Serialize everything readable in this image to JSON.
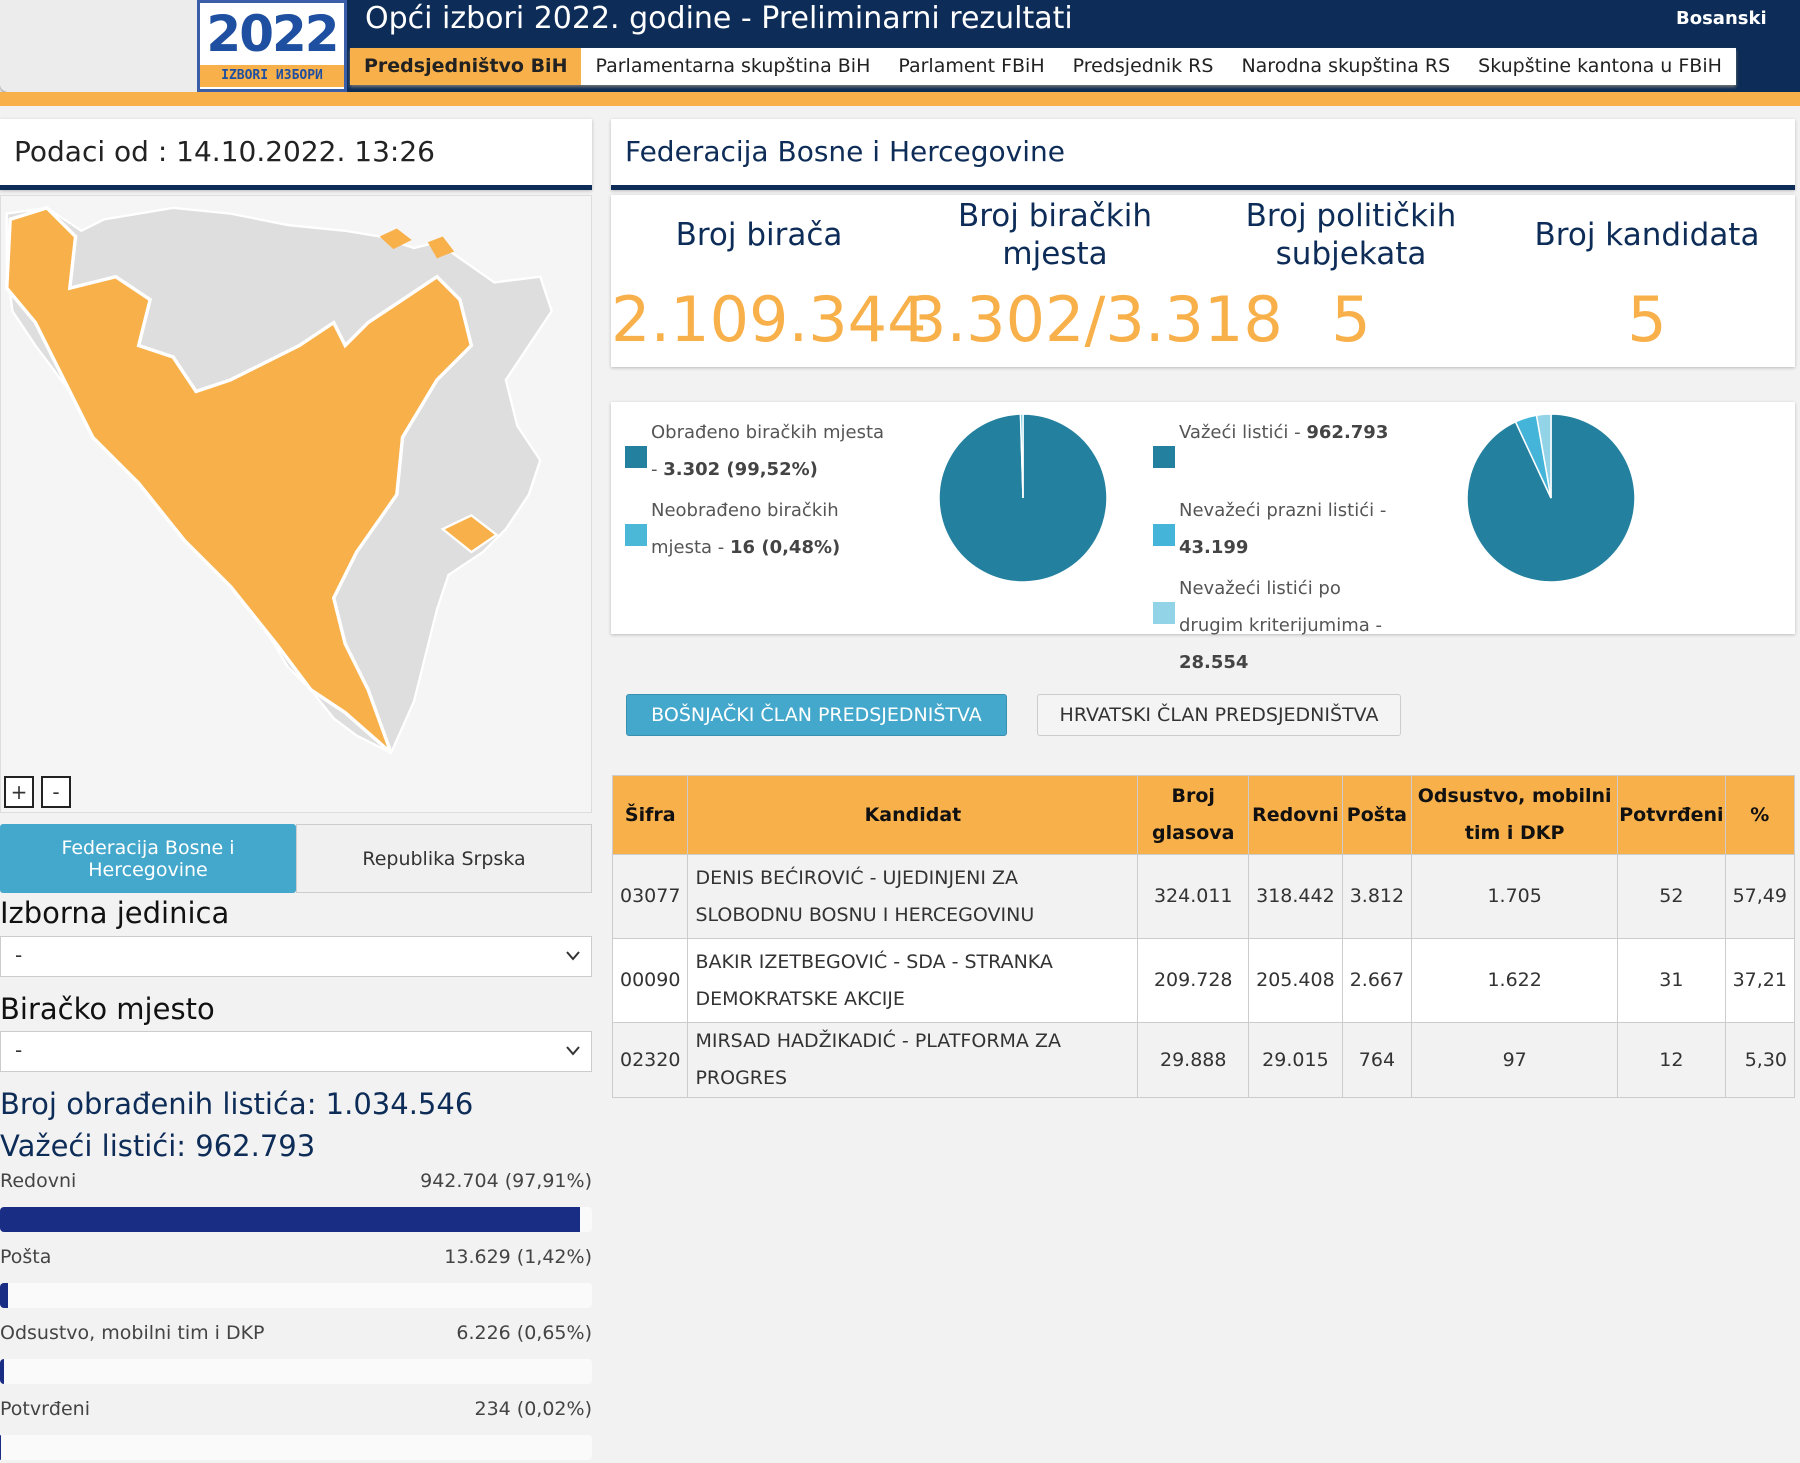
{
  "header": {
    "title": "Opći izbori 2022. godine - Preliminarni rezultati",
    "language": "Bosanski",
    "logo_year": "2022",
    "logo_text": "IZBORI ИЗБОРИ",
    "tabs": [
      "Predsjedništvo BiH",
      "Parlamentarna skupština BiH",
      "Parlament FBiH",
      "Predsjednik RS",
      "Narodna skupština RS",
      "Skupštine kantona u FBiH"
    ]
  },
  "left": {
    "data_as_of": "Podaci od : 14.10.2022. 13:26",
    "zoom_in": "+",
    "zoom_out": "-",
    "entity_tabs": [
      "Federacija Bosne i Hercegovine",
      "Republika Srpska"
    ],
    "unit_label": "Izborna jedinica",
    "unit_value": "-",
    "station_label": "Biračko mjesto",
    "station_value": "-",
    "processed": "Broj obrađenih listića: 1.034.546",
    "valid": "Važeći listići: 962.793",
    "breakdown": [
      {
        "label": "Redovni",
        "value_label": "942.704 (97,91%)",
        "percent": 97.91
      },
      {
        "label": "Pošta",
        "value_label": "13.629 (1,42%)",
        "percent": 1.42
      },
      {
        "label": "Odsustvo, mobilni tim i DKP",
        "value_label": "6.226 (0,65%)",
        "percent": 0.65
      },
      {
        "label": "Potvrđeni",
        "value_label": "234 (0,02%)",
        "percent": 0.02
      }
    ]
  },
  "right": {
    "title": "Federacija Bosne i Hercegovine",
    "stats": [
      {
        "label": "Broj birača",
        "value": "2.109.344"
      },
      {
        "label": "Broj biračkih mjesta",
        "value": "3.302/3.318"
      },
      {
        "label": "Broj političkih subjekata",
        "value": "5"
      },
      {
        "label": "Broj kandidata",
        "value": "5"
      }
    ],
    "pies": [
      {
        "slices": [
          {
            "name": "Obrađeno biračkih mjesta -",
            "value": 3302,
            "value_label": "3.302 (99,52%)",
            "color": "#23809e"
          },
          {
            "name": "Neobrađeno biračkih mjesta -",
            "value": 16,
            "value_label": "16 (0,48%)",
            "color": "#4cb8d8"
          }
        ]
      },
      {
        "slices": [
          {
            "name": "Važeći listići -",
            "value": 962793,
            "value_label": "962.793",
            "color": "#23809e"
          },
          {
            "name": "Nevažeći prazni listići -",
            "value": 43199,
            "value_label": "43.199",
            "color": "#44b4d8"
          },
          {
            "name": "Nevažeći listići po drugim kriterijumima -",
            "value": 28554,
            "value_label": "28.554",
            "color": "#92d3e8"
          }
        ]
      }
    ],
    "buttons": [
      "BOŠNJAČKI ČLAN PREDSJEDNIŠTVA",
      "HRVATSKI ČLAN PREDSJEDNIŠTVA"
    ],
    "table": {
      "columns": [
        "Šifra",
        "Kandidat",
        "Broj glasova",
        "Redovni",
        "Pošta",
        "Odsustvo, mobilni tim i DKP",
        "Potvrđeni",
        "%"
      ],
      "rows": [
        [
          "03077",
          "DENIS BEĆIROVIĆ - UJEDINJENI ZA SLOBODNU BOSNU I HERCEGOVINU",
          "324.011",
          "318.442",
          "3.812",
          "1.705",
          "52",
          "57,49"
        ],
        [
          "00090",
          "BAKIR IZETBEGOVIĆ - SDA - STRANKA DEMOKRATSKE AKCIJE",
          "209.728",
          "205.408",
          "2.667",
          "1.622",
          "31",
          "37,21"
        ],
        [
          "02320",
          "MIRSAD HADŽIKADIĆ - PLATFORMA ZA PROGRES",
          "29.888",
          "29.015",
          "764",
          "97",
          "12",
          "5,30"
        ]
      ]
    }
  }
}
